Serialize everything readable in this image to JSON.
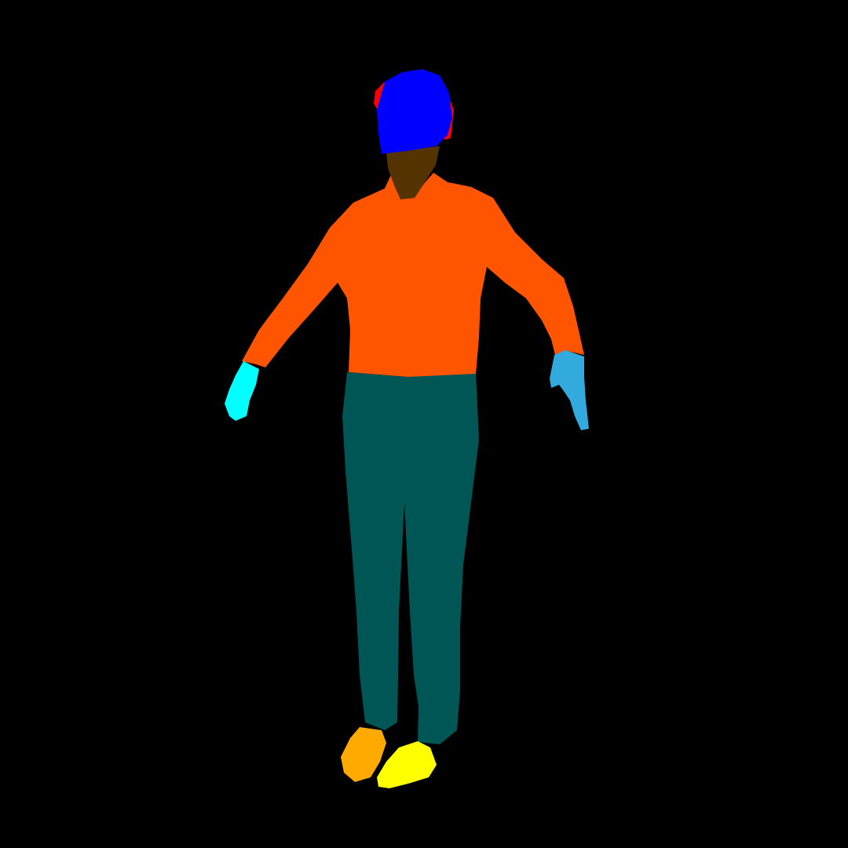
{
  "image": {
    "background_color": "#000000",
    "segments": [
      {
        "part": "hat",
        "color": "#0000ff"
      },
      {
        "part": "hat-trim",
        "color": "#ff0000"
      },
      {
        "part": "face",
        "color": "#553300"
      },
      {
        "part": "upper-clothes",
        "color": "#ff5500"
      },
      {
        "part": "pants",
        "color": "#005555"
      },
      {
        "part": "right-hand",
        "color": "#00ffff"
      },
      {
        "part": "left-hand",
        "color": "#33aadd"
      },
      {
        "part": "right-shoe",
        "color": "#ffaa00"
      },
      {
        "part": "left-shoe",
        "color": "#ffff00"
      }
    ]
  }
}
